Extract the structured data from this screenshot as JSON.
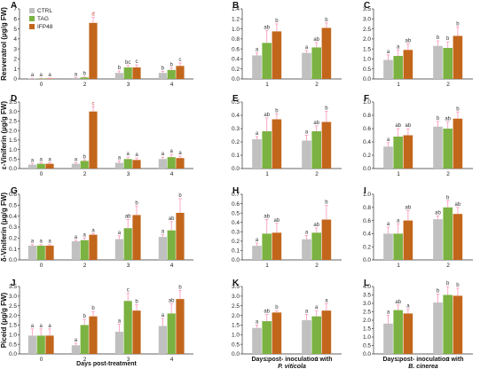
{
  "colors": {
    "CTRL": "#c0c0c0",
    "TAG": "#7bb241",
    "IFP48": "#c2661c",
    "error": "#ff9fbf"
  },
  "legend": [
    "CTRL",
    "TAG",
    "IFP48"
  ],
  "row_ylabels": [
    "Resveratrol (µg/g FW)",
    "ε-Viniferin (µg/g FW)",
    "δ-Viniferin (µg/g FW)",
    "Piceid (µg/g FW)"
  ],
  "col_xlabels": [
    {
      "line1": "Days post-treatment",
      "line2": ""
    },
    {
      "line1": "Days post- inoculation with",
      "line2": "P. viticola"
    },
    {
      "line1": "Days post- inoculation with",
      "line2": "B. cinerea"
    }
  ],
  "chart_data": [
    {
      "panel": "A",
      "type": "bar",
      "categories": [
        "0",
        "2",
        "3",
        "4"
      ],
      "ylim": [
        0,
        7
      ],
      "yticks": [
        0,
        1,
        2,
        3,
        4,
        5,
        6,
        7
      ],
      "series": [
        {
          "name": "CTRL",
          "values": [
            0.05,
            0.1,
            0.6,
            0.6
          ],
          "err": [
            0.02,
            0.05,
            0.2,
            0.15
          ],
          "letters": [
            "a",
            "a",
            "b",
            "b"
          ]
        },
        {
          "name": "TAG",
          "values": [
            0.05,
            0.15,
            1.15,
            0.9
          ],
          "err": [
            0.02,
            0.05,
            0.2,
            0.2
          ],
          "letters": [
            "a",
            "b",
            "bc",
            "b"
          ]
        },
        {
          "name": "IFP48",
          "values": [
            0.05,
            5.6,
            1.15,
            1.3
          ],
          "err": [
            0.02,
            0.55,
            0.25,
            0.3
          ],
          "letters": [
            "a",
            "d",
            "c",
            "c"
          ]
        }
      ]
    },
    {
      "panel": "B",
      "type": "bar",
      "categories": [
        "1",
        "2"
      ],
      "ylim": [
        0,
        1.4
      ],
      "yticks": [
        0,
        0.2,
        0.4,
        0.6,
        0.8,
        1.0,
        1.2,
        1.4
      ],
      "series": [
        {
          "name": "CTRL",
          "values": [
            0.47,
            0.52
          ],
          "err": [
            0.05,
            0.05
          ],
          "letters": [
            "a",
            "a"
          ]
        },
        {
          "name": "TAG",
          "values": [
            0.72,
            0.63
          ],
          "err": [
            0.25,
            0.1
          ],
          "letters": [
            "ab",
            "ab"
          ]
        },
        {
          "name": "IFP48",
          "values": [
            0.95,
            1.02
          ],
          "err": [
            0.15,
            0.1
          ],
          "letters": [
            "b",
            "b"
          ]
        }
      ]
    },
    {
      "panel": "C",
      "type": "bar",
      "categories": [
        "1",
        "2"
      ],
      "ylim": [
        0,
        3.5
      ],
      "yticks": [
        0,
        0.5,
        1.0,
        1.5,
        2.0,
        2.5,
        3.0,
        3.5
      ],
      "series": [
        {
          "name": "CTRL",
          "values": [
            0.95,
            1.65
          ],
          "err": [
            0.25,
            0.25
          ],
          "letters": [
            "a",
            "b"
          ]
        },
        {
          "name": "TAG",
          "values": [
            1.15,
            1.55
          ],
          "err": [
            0.3,
            0.3
          ],
          "letters": [
            "a",
            "b"
          ]
        },
        {
          "name": "IFP48",
          "values": [
            1.45,
            2.15
          ],
          "err": [
            0.3,
            0.45
          ],
          "letters": [
            "ab",
            "b"
          ]
        }
      ]
    },
    {
      "panel": "D",
      "type": "bar",
      "categories": [
        "0",
        "2",
        "3",
        "4"
      ],
      "ylim": [
        0,
        3.5
      ],
      "yticks": [
        0,
        0.5,
        1.0,
        1.5,
        2.0,
        2.5,
        3.0,
        3.5
      ],
      "series": [
        {
          "name": "CTRL",
          "values": [
            0.2,
            0.25,
            0.3,
            0.5
          ],
          "err": [
            0.05,
            0.05,
            0.1,
            0.1
          ],
          "letters": [
            "a",
            "a",
            "a",
            "a"
          ]
        },
        {
          "name": "TAG",
          "values": [
            0.25,
            0.4,
            0.5,
            0.6
          ],
          "err": [
            0.05,
            0.05,
            0.1,
            0.15
          ],
          "letters": [
            "a",
            "b",
            "a",
            "a"
          ]
        },
        {
          "name": "IFP48",
          "values": [
            0.25,
            3.0,
            0.45,
            0.55
          ],
          "err": [
            0.05,
            0.25,
            0.1,
            0.1
          ],
          "letters": [
            "a",
            "c",
            "a",
            "a"
          ]
        }
      ]
    },
    {
      "panel": "E",
      "type": "bar",
      "categories": [
        "1",
        "2"
      ],
      "ylim": [
        0,
        0.5
      ],
      "yticks": [
        0,
        0.1,
        0.2,
        0.3,
        0.4,
        0.5
      ],
      "series": [
        {
          "name": "CTRL",
          "values": [
            0.22,
            0.21
          ],
          "err": [
            0.02,
            0.04
          ],
          "letters": [
            "a",
            "a"
          ]
        },
        {
          "name": "TAG",
          "values": [
            0.28,
            0.28
          ],
          "err": [
            0.1,
            0.04
          ],
          "letters": [
            "ab",
            "ab"
          ]
        },
        {
          "name": "IFP48",
          "values": [
            0.37,
            0.35
          ],
          "err": [
            0.04,
            0.08
          ],
          "letters": [
            "b",
            "b"
          ]
        }
      ]
    },
    {
      "panel": "F",
      "type": "bar",
      "categories": [
        "1",
        "2"
      ],
      "ylim": [
        0,
        1.0
      ],
      "yticks": [
        0,
        0.2,
        0.4,
        0.6,
        0.8,
        1.0
      ],
      "series": [
        {
          "name": "CTRL",
          "values": [
            0.33,
            0.63
          ],
          "err": [
            0.06,
            0.08
          ],
          "letters": [
            "a",
            "b"
          ]
        },
        {
          "name": "TAG",
          "values": [
            0.48,
            0.6
          ],
          "err": [
            0.12,
            0.1
          ],
          "letters": [
            "ab",
            "ab"
          ]
        },
        {
          "name": "IFP48",
          "values": [
            0.5,
            0.75
          ],
          "err": [
            0.1,
            0.1
          ],
          "letters": [
            "ab",
            "b"
          ]
        }
      ]
    },
    {
      "panel": "G",
      "type": "bar",
      "categories": [
        "0",
        "2",
        "3",
        "4"
      ],
      "ylim": [
        0,
        0.6
      ],
      "yticks": [
        0,
        0.1,
        0.2,
        0.3,
        0.4,
        0.5,
        0.6
      ],
      "series": [
        {
          "name": "CTRL",
          "values": [
            0.13,
            0.17,
            0.19,
            0.21
          ],
          "err": [
            0.01,
            0.01,
            0.03,
            0.02
          ],
          "letters": [
            "a",
            "a",
            "a",
            "a"
          ]
        },
        {
          "name": "TAG",
          "values": [
            0.13,
            0.18,
            0.29,
            0.27
          ],
          "err": [
            0.01,
            0.02,
            0.08,
            0.08
          ],
          "letters": [
            "a",
            "a",
            "ab",
            "ab"
          ]
        },
        {
          "name": "IFP48",
          "values": [
            0.13,
            0.23,
            0.41,
            0.43
          ],
          "err": [
            0.01,
            0.01,
            0.08,
            0.13
          ],
          "letters": [
            "a",
            "a",
            "b",
            "b"
          ]
        }
      ]
    },
    {
      "panel": "H",
      "type": "bar",
      "categories": [
        "1",
        "2"
      ],
      "ylim": [
        0,
        0.7
      ],
      "yticks": [
        0,
        0.1,
        0.2,
        0.3,
        0.4,
        0.5,
        0.6,
        0.7
      ],
      "series": [
        {
          "name": "CTRL",
          "values": [
            0.15,
            0.22
          ],
          "err": [
            0.03,
            0.04
          ],
          "letters": [
            "a",
            "a"
          ]
        },
        {
          "name": "TAG",
          "values": [
            0.28,
            0.29
          ],
          "err": [
            0.15,
            0.05
          ],
          "letters": [
            "ab",
            "ab"
          ]
        },
        {
          "name": "IFP48",
          "values": [
            0.29,
            0.43
          ],
          "err": [
            0.1,
            0.15
          ],
          "letters": [
            "ab",
            "b"
          ]
        }
      ]
    },
    {
      "panel": "I",
      "type": "bar",
      "categories": [
        "1",
        "2"
      ],
      "ylim": [
        0,
        1.0
      ],
      "yticks": [
        0,
        0.2,
        0.4,
        0.6,
        0.8,
        1.0
      ],
      "series": [
        {
          "name": "CTRL",
          "values": [
            0.4,
            0.62
          ],
          "err": [
            0.1,
            0.05
          ],
          "letters": [
            "a",
            "ab"
          ]
        },
        {
          "name": "TAG",
          "values": [
            0.4,
            0.8
          ],
          "err": [
            0.15,
            0.1
          ],
          "letters": [
            "a",
            "b"
          ]
        },
        {
          "name": "IFP48",
          "values": [
            0.6,
            0.7
          ],
          "err": [
            0.15,
            0.1
          ],
          "letters": [
            "ab",
            "ab"
          ]
        }
      ]
    },
    {
      "panel": "J",
      "type": "bar",
      "categories": [
        "0",
        "2",
        "3",
        "4"
      ],
      "ylim": [
        0,
        3.5
      ],
      "yticks": [
        0,
        0.5,
        1.0,
        1.5,
        2.0,
        2.5,
        3.0,
        3.5
      ],
      "series": [
        {
          "name": "CTRL",
          "values": [
            0.95,
            0.45,
            1.15,
            1.45
          ],
          "err": [
            0.35,
            0.1,
            0.4,
            0.4
          ],
          "letters": [
            "a",
            "a",
            "a",
            "a"
          ]
        },
        {
          "name": "TAG",
          "values": [
            0.95,
            1.5,
            2.75,
            2.1
          ],
          "err": [
            0.35,
            0.3,
            0.4,
            0.5
          ],
          "letters": [
            "a",
            "b",
            "c",
            "ab"
          ]
        },
        {
          "name": "IFP48",
          "values": [
            0.95,
            1.95,
            2.25,
            2.85
          ],
          "err": [
            0.35,
            0.25,
            0.3,
            0.45
          ],
          "letters": [
            "a",
            "b",
            "b",
            "b"
          ]
        }
      ]
    },
    {
      "panel": "K",
      "type": "bar",
      "categories": [
        "1",
        "2"
      ],
      "ylim": [
        0,
        3.5
      ],
      "yticks": [
        0,
        0.5,
        1.0,
        1.5,
        2.0,
        2.5,
        3.0,
        3.5
      ],
      "series": [
        {
          "name": "CTRL",
          "values": [
            1.35,
            1.75
          ],
          "err": [
            0.15,
            0.3
          ],
          "letters": [
            "a",
            "a"
          ]
        },
        {
          "name": "TAG",
          "values": [
            1.7,
            1.95
          ],
          "err": [
            0.35,
            0.3
          ],
          "letters": [
            "ab",
            "a"
          ]
        },
        {
          "name": "IFP48",
          "values": [
            2.15,
            2.25
          ],
          "err": [
            0.1,
            0.35
          ],
          "letters": [
            "b",
            "a"
          ]
        }
      ]
    },
    {
      "panel": "L",
      "type": "bar",
      "categories": [
        "1",
        "2"
      ],
      "ylim": [
        0,
        4.0
      ],
      "yticks": [
        0,
        0.5,
        1.0,
        1.5,
        2.0,
        2.5,
        3.0,
        3.5,
        4.0
      ],
      "series": [
        {
          "name": "CTRL",
          "values": [
            1.8,
            3.05
          ],
          "err": [
            0.5,
            0.5
          ],
          "letters": [
            "a",
            "b"
          ]
        },
        {
          "name": "TAG",
          "values": [
            2.6,
            3.5
          ],
          "err": [
            0.3,
            0.5
          ],
          "letters": [
            "ab",
            "b"
          ]
        },
        {
          "name": "IFP48",
          "values": [
            2.4,
            3.45
          ],
          "err": [
            0.25,
            0.45
          ],
          "letters": [
            "a",
            "b"
          ]
        }
      ]
    }
  ]
}
